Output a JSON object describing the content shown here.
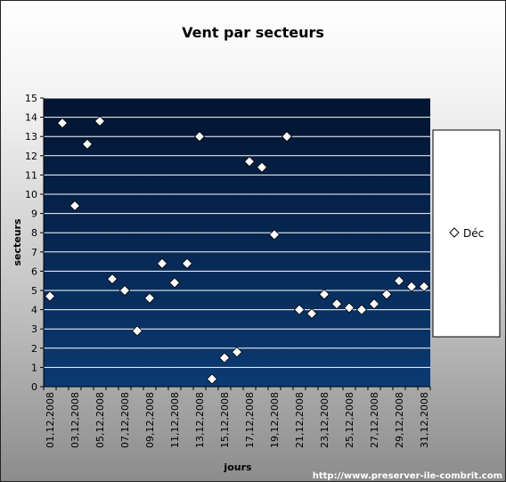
{
  "chart_data": {
    "type": "scatter",
    "title": "Vent par secteurs",
    "xlabel": "jours",
    "ylabel": "secteurs",
    "ylim": [
      0,
      15
    ],
    "yticks": [
      "0",
      "1",
      "2",
      "3",
      "4",
      "5",
      "6",
      "7",
      "8",
      "9",
      "10",
      "11",
      "12",
      "13",
      "14",
      "15"
    ],
    "xticks": [
      "01,12,2008",
      "03,12,2008",
      "05,12,2008",
      "07,12,2008",
      "09,12,2008",
      "11,12,2008",
      "13,12,2008",
      "15,12,2008",
      "17,12,2008",
      "19,12,2008",
      "21,12,2008",
      "23,12,2008",
      "25,12,2008",
      "27,12,2008",
      "29,12,2008",
      "31,12,2008"
    ],
    "grid": true,
    "legend_position": "right",
    "series": [
      {
        "name": "Déc",
        "marker": "diamond",
        "color": "#ffffff",
        "x": [
          1,
          2,
          3,
          4,
          5,
          6,
          7,
          8,
          9,
          10,
          11,
          12,
          13,
          14,
          15,
          16,
          17,
          18,
          19,
          20,
          21,
          22,
          23,
          24,
          25,
          26,
          27,
          28,
          29,
          30,
          31
        ],
        "values": [
          4.7,
          13.7,
          9.4,
          12.6,
          13.8,
          5.6,
          5.0,
          2.9,
          4.6,
          6.4,
          5.4,
          6.4,
          13.0,
          0.4,
          1.5,
          1.8,
          11.7,
          11.4,
          7.9,
          13.0,
          4.0,
          3.8,
          4.8,
          4.3,
          4.1,
          4.0,
          4.3,
          4.8,
          5.5,
          5.2,
          5.2
        ]
      }
    ]
  },
  "footer": {
    "url": "http://www.preserver-ile-combrit.com"
  },
  "colors": {
    "plot_top": "#021431",
    "plot_bottom": "#0b3a72",
    "grid": "#ffffff",
    "marker": "#ffffff"
  }
}
